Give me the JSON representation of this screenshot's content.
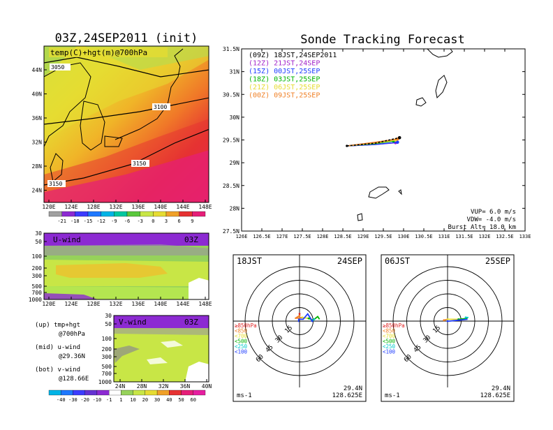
{
  "left_top": {
    "title": "03Z,24SEP2011 (init)",
    "label": "temp(C)+hgt(m)@700hPa",
    "contours": [
      "3050",
      "3100",
      "3150",
      "3150"
    ],
    "ylabels": [
      "44N",
      "40N",
      "36N",
      "32N",
      "28N",
      "24N"
    ],
    "xlabels": [
      "120E",
      "124E",
      "128E",
      "132E",
      "136E",
      "140E",
      "144E",
      "148E"
    ],
    "colorbar": [
      "-21",
      "-18",
      "-15",
      "-12",
      "-9",
      "-6",
      "-3",
      "0",
      "3",
      "6",
      "9"
    ]
  },
  "u_wind": {
    "label": "U-wind",
    "time": "03Z",
    "ylabels": [
      "30",
      "50",
      "100",
      "200",
      "300",
      "500",
      "700",
      "1000"
    ],
    "xlabels": [
      "120E",
      "124E",
      "128E",
      "132E",
      "136E",
      "140E",
      "144E",
      "148E"
    ]
  },
  "v_wind": {
    "label": "V-wind",
    "time": "03Z",
    "ylabels": [
      "30",
      "50",
      "100",
      "200",
      "300",
      "500",
      "700",
      "1000"
    ],
    "xlabels": [
      "24N",
      "28N",
      "32N",
      "36N",
      "40N"
    ],
    "colorbar": [
      "-40",
      "-30",
      "-20",
      "-10",
      "-1",
      "1",
      "10",
      "20",
      "30",
      "40",
      "50",
      "60"
    ]
  },
  "notes": [
    {
      "a": "(up) tmp+hgt",
      "b": "@700hPa"
    },
    {
      "a": "(mid) u-wind",
      "b": "@29.36N"
    },
    {
      "a": "(bot) v-wind",
      "b": "@128.66E"
    }
  ],
  "main": {
    "title": "Sonde Tracking Forecast",
    "ylabels": [
      "31.5N",
      "31N",
      "30.5N",
      "30N",
      "29.5N",
      "29N",
      "28.5N",
      "28N",
      "27.5N"
    ],
    "xlabels": [
      "126E",
      "126.5E",
      "127E",
      "127.5E",
      "128E",
      "128.5E",
      "129E",
      "129.5E",
      "130E",
      "130.5E",
      "131E",
      "131.5E",
      "132E",
      "132.5E",
      "133E"
    ],
    "legend": [
      {
        "text": "(09Z) 18JST,24SEP2011",
        "color": "#000000"
      },
      {
        "text": "(12Z) 21JST,24SEP",
        "color": "#a020c8"
      },
      {
        "text": "(15Z) 00JST,25SEP",
        "color": "#1e3cff"
      },
      {
        "text": "(18Z) 03JST,25SEP",
        "color": "#00b400"
      },
      {
        "text": "(21Z) 06JST,25SEP",
        "color": "#e6dc32"
      },
      {
        "text": "(00Z) 09JST,25SEP",
        "color": "#f08228"
      }
    ],
    "params": [
      "VUP= 6.0 m/s",
      "VDW= -4.0 m/s",
      "Burst Alt= 18.0 km"
    ]
  },
  "chart_data": [
    {
      "type": "line",
      "title": "Sonde Tracking Forecast",
      "xlim": [
        126,
        133
      ],
      "ylim": [
        27.5,
        31.5
      ],
      "series": [
        {
          "name": "(09Z) 18JST,24SEP2011",
          "points": [
            [
              128.6,
              29.37
            ],
            [
              129.3,
              29.43
            ],
            [
              129.9,
              29.55
            ]
          ]
        },
        {
          "name": "(12Z) 21JST,24SEP",
          "points": [
            [
              128.6,
              29.37
            ],
            [
              129.3,
              29.4
            ],
            [
              129.8,
              29.44
            ]
          ]
        },
        {
          "name": "(15Z) 00JST,25SEP",
          "points": [
            [
              128.6,
              29.37
            ],
            [
              129.3,
              29.4
            ],
            [
              129.85,
              29.45
            ]
          ]
        },
        {
          "name": "(18Z) 03JST,25SEP",
          "points": [
            [
              128.6,
              29.37
            ],
            [
              129.3,
              29.42
            ],
            [
              129.75,
              29.48
            ]
          ]
        },
        {
          "name": "(21Z) 06JST,25SEP",
          "points": [
            [
              128.6,
              29.37
            ],
            [
              129.3,
              29.43
            ],
            [
              129.8,
              29.5
            ]
          ]
        },
        {
          "name": "(00Z) 09JST,25SEP",
          "points": [
            [
              128.6,
              29.37
            ],
            [
              129.3,
              29.45
            ],
            [
              129.85,
              29.52
            ]
          ]
        }
      ]
    },
    {
      "type": "scatter",
      "title": "18JST 24SEP",
      "rings": [
        "15",
        "30",
        "45",
        "60"
      ],
      "unit": "ms-1",
      "location": [
        "29.4N",
        "128.625E"
      ],
      "levels": [
        {
          "label": "≥850hPa",
          "color": "#e02020"
        },
        {
          "label": "<850",
          "color": "#f08228"
        },
        {
          "label": "<700",
          "color": "#e6dc32"
        },
        {
          "label": "<500",
          "color": "#00b400"
        },
        {
          "label": "<250",
          "color": "#00c8c8"
        },
        {
          "label": "<100",
          "color": "#1e3cff"
        }
      ],
      "hodograph": [
        {
          "color": "#e02020",
          "points": [
            [
              0,
              8
            ],
            [
              0,
              6
            ]
          ]
        },
        {
          "color": "#f08228",
          "points": [
            [
              0,
              6
            ],
            [
              -5,
              3
            ],
            [
              3,
              4
            ]
          ]
        },
        {
          "color": "#e6dc32",
          "points": [
            [
              3,
              4
            ],
            [
              10,
              3
            ]
          ]
        },
        {
          "color": "#00b400",
          "points": [
            [
              10,
              3
            ],
            [
              15,
              1
            ],
            [
              20,
              5
            ],
            [
              22,
              2
            ]
          ]
        },
        {
          "color": "#00c8c8",
          "points": [
            [
              16,
              2
            ],
            [
              14,
              0
            ]
          ]
        },
        {
          "color": "#1e3cff",
          "points": [
            [
              14,
              0
            ],
            [
              9,
              8
            ],
            [
              4,
              2
            ],
            [
              -1,
              2
            ],
            [
              -1,
              -1
            ]
          ]
        }
      ]
    },
    {
      "type": "scatter",
      "title": "06JST 25SEP",
      "rings": [
        "15",
        "30",
        "45",
        "60"
      ],
      "unit": "ms-1",
      "location": [
        "29.4N",
        "128.625E"
      ],
      "levels": [
        {
          "label": "≥850hPa",
          "color": "#e02020"
        },
        {
          "label": "<850",
          "color": "#f08228"
        },
        {
          "label": "<700",
          "color": "#e6dc32"
        },
        {
          "label": "<500",
          "color": "#00b400"
        },
        {
          "label": "<250",
          "color": "#00c8c8"
        },
        {
          "label": "<100",
          "color": "#1e3cff"
        }
      ],
      "hodograph": [
        {
          "color": "#f08228",
          "points": [
            [
              -4,
              1
            ],
            [
              0,
              2
            ]
          ]
        },
        {
          "color": "#e6dc32",
          "points": [
            [
              0,
              2
            ],
            [
              12,
              2
            ]
          ]
        },
        {
          "color": "#00b400",
          "points": [
            [
              12,
              2
            ],
            [
              22,
              3
            ]
          ]
        },
        {
          "color": "#00c8c8",
          "points": [
            [
              20,
              4
            ],
            [
              23,
              4
            ]
          ]
        },
        {
          "color": "#1e3cff",
          "points": [
            [
              0,
              0
            ],
            [
              2,
              0
            ],
            [
              12,
              1
            ],
            [
              22,
              2
            ]
          ]
        }
      ]
    }
  ]
}
